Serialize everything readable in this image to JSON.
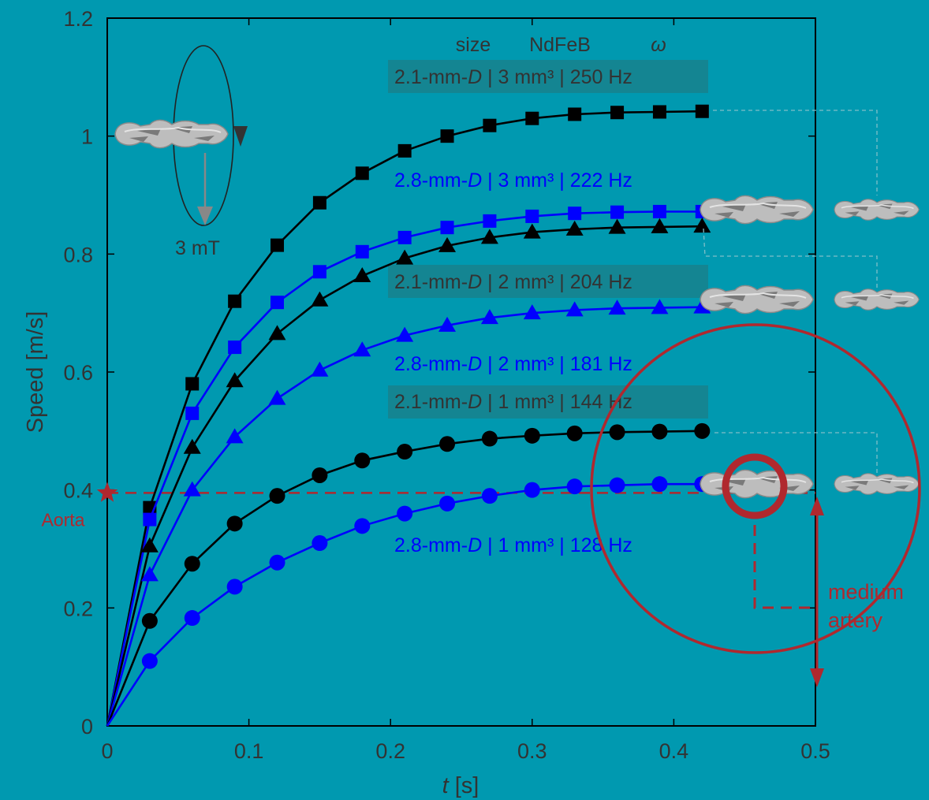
{
  "colors": {
    "background": "#0099b0",
    "black_series": "#000000",
    "blue_series": "#0000ff",
    "aorta": "#b0282e",
    "label_box": "#16838f",
    "robot": "#bdbdbd"
  },
  "chart_data": {
    "type": "line",
    "xlabel_italic": "t",
    "xlabel_unit": " [s]",
    "ylabel": "Speed [m/s]",
    "xlim": [
      0,
      0.5
    ],
    "ylim": [
      0,
      1.2
    ],
    "xticks": [
      0,
      0.1,
      0.2,
      0.3,
      0.4,
      0.5
    ],
    "xtick_labels": [
      "0",
      "0.1",
      "0.2",
      "0.3",
      "0.4",
      "0.5"
    ],
    "yticks": [
      0,
      0.2,
      0.4,
      0.6,
      0.8,
      1,
      1.2
    ],
    "ytick_labels": [
      "0",
      "0.2",
      "0.4",
      "0.6",
      "0.8",
      "1",
      "1.2"
    ],
    "grid": false,
    "x": [
      0,
      0.03,
      0.06,
      0.09,
      0.12,
      0.15,
      0.18,
      0.21,
      0.24,
      0.27,
      0.3,
      0.33,
      0.36,
      0.39,
      0.42
    ],
    "series": [
      {
        "label": "2.1-mm-D | 3 mm³ | 250 Hz",
        "color": "#000000",
        "marker": "square",
        "values": [
          0,
          0.37,
          0.58,
          0.72,
          0.815,
          0.887,
          0.937,
          0.975,
          1.0,
          1.018,
          1.03,
          1.037,
          1.04,
          1.041,
          1.042
        ]
      },
      {
        "label": "2.8-mm-D | 3 mm³ | 222 Hz",
        "color": "#0000ff",
        "marker": "square",
        "values": [
          0,
          0.35,
          0.53,
          0.642,
          0.718,
          0.77,
          0.804,
          0.828,
          0.845,
          0.856,
          0.864,
          0.869,
          0.871,
          0.872,
          0.872
        ]
      },
      {
        "label": "2.1-mm-D | 2 mm³ | 204 Hz",
        "color": "#000000",
        "marker": "triangle",
        "values": [
          0,
          0.305,
          0.472,
          0.585,
          0.665,
          0.722,
          0.763,
          0.793,
          0.814,
          0.828,
          0.837,
          0.842,
          0.845,
          0.846,
          0.847
        ]
      },
      {
        "label": "2.8-mm-D | 2 mm³ | 181 Hz",
        "color": "#0000ff",
        "marker": "triangle",
        "values": [
          0,
          0.256,
          0.4,
          0.49,
          0.555,
          0.603,
          0.637,
          0.662,
          0.679,
          0.692,
          0.7,
          0.705,
          0.708,
          0.709,
          0.71
        ]
      },
      {
        "label": "2.1-mm-D | 1 mm³ | 144 Hz",
        "color": "#000000",
        "marker": "circle",
        "values": [
          0,
          0.178,
          0.275,
          0.343,
          0.39,
          0.425,
          0.45,
          0.465,
          0.478,
          0.487,
          0.492,
          0.496,
          0.498,
          0.499,
          0.5
        ]
      },
      {
        "label": "2.8-mm-D | 1 mm³ | 128 Hz",
        "color": "#0000ff",
        "marker": "circle",
        "values": [
          0,
          0.11,
          0.183,
          0.236,
          0.277,
          0.31,
          0.339,
          0.36,
          0.377,
          0.39,
          0.4,
          0.406,
          0.408,
          0.41,
          0.41
        ]
      }
    ],
    "header_size": "size",
    "header_magnet": "NdFeB",
    "header_omega": "ω",
    "label_parts": [
      {
        "pre": "2.1-mm-",
        "ital": "D",
        "post": " | 3 mm³ | 250 Hz"
      },
      {
        "pre": "2.8-mm-",
        "ital": "D",
        "post": " | 3 mm³ | 222 Hz"
      },
      {
        "pre": "2.1-mm-",
        "ital": "D",
        "post": " | 2 mm³ | 204 Hz"
      },
      {
        "pre": "2.8-mm-",
        "ital": "D",
        "post": " | 2 mm³ | 181 Hz"
      },
      {
        "pre": "2.1-mm-",
        "ital": "D",
        "post": " | 1 mm³ | 144 Hz"
      },
      {
        "pre": "2.8-mm-",
        "ital": "D",
        "post": " | 1 mm³ | 128 Hz"
      }
    ],
    "field_label": "3 mT",
    "aorta_label": "Aorta",
    "aorta_speed": 0.395,
    "medium_label_1": "medium",
    "medium_label_2": "artery"
  }
}
